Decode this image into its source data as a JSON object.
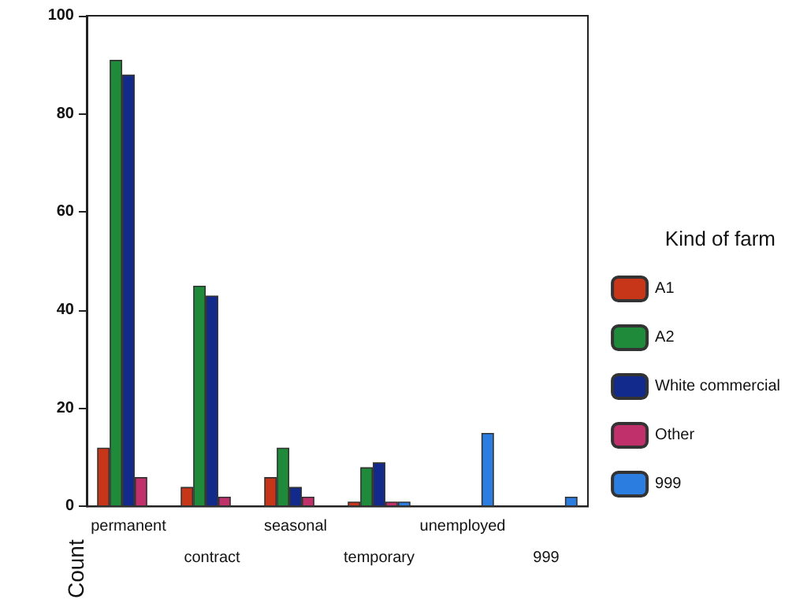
{
  "chart_data": {
    "type": "bar",
    "ylabel": "Count",
    "legend_title": "Kind of farm",
    "categories": [
      "permanent",
      "contract",
      "seasonal",
      "temporary",
      "unemployed",
      "999"
    ],
    "series": [
      {
        "name": "A1",
        "color": "#c8361a",
        "values": [
          12,
          4,
          6,
          1,
          null,
          null
        ]
      },
      {
        "name": "A2",
        "color": "#1f8a3a",
        "values": [
          91,
          45,
          12,
          8,
          null,
          null
        ]
      },
      {
        "name": "White commercial",
        "color": "#112a8c",
        "values": [
          88,
          43,
          4,
          9,
          null,
          null
        ]
      },
      {
        "name": "Other",
        "color": "#c0306a",
        "values": [
          6,
          2,
          2,
          1,
          null,
          null
        ]
      },
      {
        "name": "999",
        "color": "#2b7de0",
        "values": [
          null,
          null,
          null,
          1,
          15,
          2
        ]
      }
    ],
    "ylim": [
      0,
      100
    ],
    "yticks": [
      0,
      20,
      40,
      60,
      80,
      100
    ],
    "grid": false,
    "legend": "right"
  }
}
